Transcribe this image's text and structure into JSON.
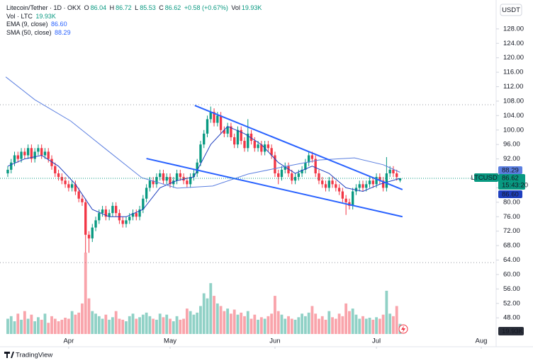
{
  "chart_data": {
    "type": "candlestick",
    "symbol": "Litecoin/Tether · 1D · OKX",
    "ohlc_labels": [
      "O",
      "H",
      "L",
      "C"
    ],
    "change_label": "+0.58 (+0.67%)",
    "volume_legend": "Vol",
    "volume_legend_name": "Vol · LTC",
    "last_volume_label": "19.93K",
    "currency": "USDT",
    "ticker": "LTCUSDT",
    "countdown": "15:43:20",
    "brand": "TradingView",
    "up_color": "#089981",
    "down_color": "#f23645",
    "x": [
      -18,
      -17,
      -16,
      -15,
      -14,
      -13,
      -12,
      -11,
      -10,
      -9,
      -8,
      -7,
      -6,
      -5,
      -4,
      -3,
      -2,
      -1,
      0,
      1,
      2,
      3,
      4,
      5,
      6,
      7,
      8,
      9,
      10,
      11,
      12,
      13,
      14,
      15,
      16,
      17,
      18,
      19,
      20,
      21,
      22,
      23,
      24,
      25,
      26,
      27,
      28,
      29,
      30,
      31,
      32,
      33,
      34,
      35,
      36,
      37,
      38,
      39,
      40,
      41,
      42,
      43,
      44,
      45,
      46,
      47,
      48,
      49,
      50,
      51,
      52,
      53,
      54,
      55,
      56,
      57,
      58,
      59,
      60,
      61,
      62,
      63,
      64,
      65,
      66,
      67,
      68,
      69,
      70,
      71,
      72,
      73,
      74,
      75,
      76,
      77,
      78,
      79,
      80,
      81,
      82,
      83,
      84,
      85,
      86,
      87,
      88,
      89,
      90,
      91,
      92,
      93,
      94,
      95,
      96,
      97,
      98
    ],
    "open": [
      88,
      89,
      91,
      93,
      92,
      94,
      93,
      95,
      92,
      94,
      95,
      93,
      94,
      92,
      90,
      88,
      87,
      86,
      85,
      84,
      85,
      83,
      81,
      80,
      71,
      70,
      73,
      75,
      77,
      78,
      76,
      77,
      79,
      77,
      75,
      74,
      75,
      76,
      77,
      76,
      78,
      81,
      84,
      86,
      85,
      87,
      88,
      86,
      87,
      85,
      86,
      88,
      87,
      86,
      85,
      87,
      88,
      91,
      96,
      99,
      103,
      105,
      102,
      104,
      100,
      99,
      101,
      98,
      96,
      100,
      97,
      95,
      99,
      97,
      95,
      96,
      94,
      96,
      95,
      93,
      88,
      87,
      89,
      90,
      88,
      86,
      87,
      88,
      89,
      91,
      93,
      92,
      88,
      86,
      85,
      84,
      86,
      85,
      84,
      83,
      81,
      80,
      79,
      83,
      84,
      85,
      84,
      85,
      86,
      85,
      87,
      86,
      84,
      88,
      89,
      88,
      86.04
    ],
    "high": [
      90,
      92,
      94,
      94,
      95,
      95,
      96,
      96,
      95,
      96,
      96,
      95,
      95,
      93,
      91,
      89,
      88,
      87,
      86,
      86,
      86,
      84,
      82,
      81,
      72,
      74,
      76,
      78,
      79,
      79,
      78,
      80,
      80,
      78,
      76,
      76,
      77,
      78,
      78,
      79,
      82,
      85,
      87,
      87,
      88,
      89,
      89,
      88,
      88,
      87,
      89,
      89,
      88,
      87,
      88,
      89,
      92,
      97,
      100,
      104,
      106.5,
      106,
      105,
      105,
      101,
      102,
      102,
      99,
      101,
      101,
      98,
      103,
      100,
      98,
      97,
      97,
      97,
      97,
      96,
      94,
      89,
      90,
      91,
      91,
      89,
      88,
      89,
      90,
      92,
      94,
      94,
      93,
      89,
      87,
      86,
      87,
      87,
      86,
      85,
      84,
      82,
      81,
      84,
      85,
      86,
      86,
      86,
      87,
      87,
      88,
      88,
      87,
      92.5,
      90,
      90,
      89,
      86.72
    ],
    "low": [
      87,
      88,
      90,
      91,
      91,
      92,
      92,
      91,
      91,
      93,
      92,
      92,
      91,
      89,
      87,
      86,
      85,
      84,
      83,
      83,
      82,
      80,
      79,
      66,
      66,
      69,
      72,
      74,
      76,
      75,
      75,
      76,
      76,
      74,
      73,
      73,
      74,
      75,
      75,
      75,
      77,
      80,
      83,
      84,
      84,
      86,
      85,
      85,
      84,
      84,
      85,
      86,
      85,
      84,
      84,
      86,
      87,
      90,
      95,
      98,
      102,
      101,
      101,
      99,
      98,
      98,
      97,
      95,
      95,
      96,
      94,
      94,
      96,
      94,
      94,
      93,
      93,
      94,
      92,
      87,
      85,
      86,
      88,
      87,
      85,
      85,
      86,
      87,
      88,
      90,
      91,
      87,
      85,
      84,
      83,
      83,
      84,
      83,
      82,
      80,
      76.5,
      78,
      78,
      82,
      83,
      83,
      83,
      84,
      84,
      84,
      85,
      83,
      83,
      87,
      87,
      86,
      85.53
    ],
    "close": [
      89,
      91,
      93,
      92,
      94,
      93,
      95,
      92,
      94,
      95,
      93,
      94,
      92,
      90,
      88,
      87,
      86,
      85,
      84,
      85,
      83,
      81,
      80,
      71,
      70,
      73,
      75,
      77,
      78,
      76,
      77,
      79,
      77,
      75,
      74,
      75,
      76,
      77,
      76,
      78,
      81,
      84,
      86,
      85,
      87,
      88,
      86,
      87,
      85,
      86,
      88,
      87,
      86,
      85,
      87,
      88,
      91,
      96,
      99,
      103,
      105,
      102,
      104,
      100,
      99,
      101,
      98,
      96,
      100,
      97,
      95,
      99,
      97,
      95,
      96,
      94,
      96,
      95,
      93,
      88,
      87,
      89,
      90,
      88,
      86,
      87,
      88,
      89,
      91,
      93,
      92,
      88,
      86,
      85,
      84,
      86,
      85,
      84,
      83,
      81,
      80,
      79,
      83,
      84,
      85,
      84,
      85,
      86,
      85,
      87,
      86,
      84,
      88,
      89,
      88,
      87,
      86.62
    ],
    "volume": [
      30,
      35,
      25,
      40,
      28,
      45,
      30,
      38,
      25,
      33,
      28,
      40,
      22,
      35,
      30,
      25,
      28,
      32,
      30,
      45,
      38,
      42,
      60,
      160,
      70,
      45,
      40,
      35,
      30,
      38,
      28,
      33,
      45,
      30,
      28,
      25,
      35,
      40,
      30,
      33,
      38,
      42,
      35,
      30,
      28,
      40,
      33,
      38,
      30,
      25,
      35,
      28,
      30,
      50,
      45,
      38,
      42,
      55,
      80,
      70,
      100,
      75,
      60,
      55,
      45,
      50,
      40,
      48,
      38,
      42,
      35,
      45,
      30,
      38,
      28,
      33,
      30,
      35,
      40,
      75,
      45,
      38,
      30,
      35,
      30,
      28,
      33,
      40,
      35,
      42,
      55,
      40,
      30,
      35,
      28,
      45,
      33,
      30,
      40,
      35,
      60,
      45,
      50,
      38,
      30,
      35,
      30,
      32,
      28,
      33,
      30,
      38,
      85,
      40,
      35,
      55,
      19.93
    ],
    "indicators": [
      {
        "name": "EMA (9, close)",
        "color": "#1e3fbf",
        "last_label": "86.60",
        "x": [
          -18,
          -13,
          -8,
          -3,
          2,
          7,
          12,
          17,
          22,
          27,
          32,
          37,
          42,
          47,
          52,
          57,
          62,
          67,
          72,
          77,
          82,
          87,
          92,
          98
        ],
        "values": [
          90,
          92,
          93,
          90,
          85,
          78,
          76,
          76,
          78,
          84,
          86,
          87,
          96,
          101,
          99,
          96,
          91,
          88,
          90,
          88,
          84,
          83,
          85,
          86.6
        ]
      },
      {
        "name": "SMA (50, close)",
        "color": "#5b7fe0",
        "last_label": "88.29",
        "x": [
          -18.6,
          -10,
          0.6,
          11,
          21.6,
          32,
          42.6,
          53,
          63.5,
          74,
          84.5,
          93,
          98
        ],
        "values": [
          114.7,
          108.4,
          102.5,
          94.7,
          86.8,
          83.9,
          84.5,
          87.8,
          89.8,
          91.7,
          92.3,
          90.4,
          88.29
        ]
      }
    ],
    "trendlines": [
      {
        "x": [
          37.3,
          98.7
        ],
        "values": [
          106.8,
          83.5
        ]
      },
      {
        "x": [
          23,
          98.7
        ],
        "values": [
          92.1,
          76
        ]
      }
    ],
    "reference_lines": [
      107,
      63.3
    ],
    "xlim": [
      -20.3,
      126.4
    ],
    "xticks": [
      {
        "value": 0,
        "label": "Apr"
      },
      {
        "value": 30,
        "label": "May"
      },
      {
        "value": 61,
        "label": "Jun"
      },
      {
        "value": 91,
        "label": "Jul"
      },
      {
        "value": 122,
        "label": "Aug"
      }
    ],
    "ylim": [
      40,
      136
    ],
    "yticks": [
      {
        "value": 48,
        "label": "48.00"
      },
      {
        "value": 52,
        "label": "52.00"
      },
      {
        "value": 56,
        "label": "56.00"
      },
      {
        "value": 60,
        "label": "60.00"
      },
      {
        "value": 64,
        "label": "64.00"
      },
      {
        "value": 68,
        "label": "68.00"
      },
      {
        "value": 72,
        "label": "72.00"
      },
      {
        "value": 76,
        "label": "76.00"
      },
      {
        "value": 80,
        "label": "80.00"
      },
      {
        "value": 84,
        "label": "84.00"
      },
      {
        "value": 88,
        "label": "88.00"
      },
      {
        "value": 92,
        "label": "92.00"
      },
      {
        "value": 96,
        "label": "96.00"
      },
      {
        "value": 100,
        "label": "100.00"
      },
      {
        "value": 104,
        "label": "104.00"
      },
      {
        "value": 108,
        "label": "108.00"
      },
      {
        "value": 112,
        "label": "112.00"
      },
      {
        "value": 116,
        "label": "116.00"
      },
      {
        "value": 120,
        "label": "120.00"
      },
      {
        "value": 124,
        "label": "124.00"
      },
      {
        "value": 128,
        "label": "128.00"
      }
    ]
  }
}
